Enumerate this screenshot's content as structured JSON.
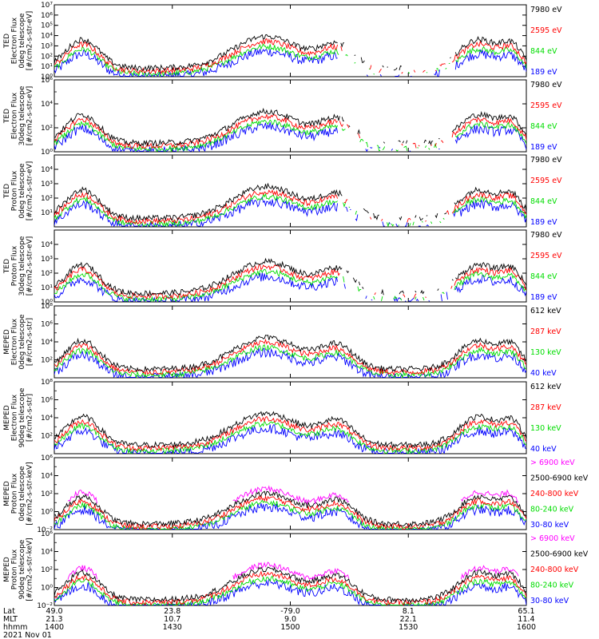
{
  "colors": {
    "black": "#000000",
    "blue": "#0000ff",
    "red": "#ff0000",
    "green": "#00dd00",
    "magenta": "#ff00ff"
  },
  "chart_data": [
    {
      "type": "line",
      "ylabel": [
        "TED",
        "Electron Flux",
        "0deg telescope",
        "[#/cm2-s-str-eV]"
      ],
      "ylim_exp": [
        0,
        7
      ],
      "tick_exps": [
        0,
        1,
        2,
        3,
        4,
        5,
        6,
        7
      ],
      "tick_labels": [
        "10⁰",
        "10¹",
        "10²",
        "10³",
        "10⁴",
        "10⁵",
        "10⁶",
        "10⁷"
      ],
      "series": [
        {
          "name": "7980 eV",
          "color": "black"
        },
        {
          "name": "2595 eV",
          "color": "red"
        },
        {
          "name": "844 eV",
          "color": "green"
        },
        {
          "name": "189 eV",
          "color": "blue"
        }
      ]
    },
    {
      "type": "line",
      "ylabel": [
        "TED",
        "Electron Flux",
        "30deg telescope",
        "[#/cm2-s-str-eV]"
      ],
      "ylim_exp": [
        0,
        6
      ],
      "tick_exps": [
        0,
        2,
        4,
        6
      ],
      "tick_labels": [
        "10⁰",
        "10²",
        "10⁴",
        "10⁶"
      ],
      "series": [
        {
          "name": "7980 eV",
          "color": "black"
        },
        {
          "name": "2595 eV",
          "color": "red"
        },
        {
          "name": "844 eV",
          "color": "green"
        },
        {
          "name": "189 eV",
          "color": "blue"
        }
      ]
    },
    {
      "type": "line",
      "ylabel": [
        "TED",
        "Proton Flux",
        "0deg telescope",
        "[#/cm2-s-str-eV]"
      ],
      "ylim_exp": [
        0,
        5
      ],
      "tick_exps": [
        1,
        2,
        3,
        4
      ],
      "tick_labels": [
        "10¹",
        "10²",
        "10³",
        "10⁴"
      ],
      "series": [
        {
          "name": "7980 eV",
          "color": "black"
        },
        {
          "name": "2595 eV",
          "color": "red"
        },
        {
          "name": "844 eV",
          "color": "green"
        },
        {
          "name": "189 eV",
          "color": "blue"
        }
      ]
    },
    {
      "type": "line",
      "ylabel": [
        "TED",
        "Proton Flux",
        "30deg telescope",
        "[#/cm2-s-str-eV]"
      ],
      "ylim_exp": [
        0,
        5
      ],
      "tick_exps": [
        0,
        1,
        2,
        3,
        4
      ],
      "tick_labels": [
        "10⁰",
        "10¹",
        "10²",
        "10³",
        "10⁴"
      ],
      "series": [
        {
          "name": "7980 eV",
          "color": "black"
        },
        {
          "name": "2595 eV",
          "color": "red"
        },
        {
          "name": "844 eV",
          "color": "green"
        },
        {
          "name": "189 eV",
          "color": "blue"
        }
      ]
    },
    {
      "type": "line",
      "ylabel": [
        "MEPED",
        "Electron Flux",
        "0deg telescope",
        "[#/cm2-s-str]"
      ],
      "ylim_exp": [
        0,
        8
      ],
      "tick_exps": [
        2,
        4,
        6,
        8
      ],
      "tick_labels": [
        "10²",
        "10⁴",
        "10⁶",
        "10⁸"
      ],
      "series": [
        {
          "name": "612 keV",
          "color": "black"
        },
        {
          "name": "287 keV",
          "color": "red"
        },
        {
          "name": "130 keV",
          "color": "green"
        },
        {
          "name": "40 keV",
          "color": "blue"
        }
      ]
    },
    {
      "type": "line",
      "ylabel": [
        "MEPED",
        "Electron Flux",
        "90deg telescope",
        "[#/cm2-s-str]"
      ],
      "ylim_exp": [
        0,
        8
      ],
      "tick_exps": [
        2,
        4,
        6,
        8
      ],
      "tick_labels": [
        "10²",
        "10⁴",
        "10⁶",
        "10⁸"
      ],
      "series": [
        {
          "name": "612 keV",
          "color": "black"
        },
        {
          "name": "287 keV",
          "color": "red"
        },
        {
          "name": "130 keV",
          "color": "green"
        },
        {
          "name": "40 keV",
          "color": "blue"
        }
      ]
    },
    {
      "type": "line",
      "ylabel": [
        "MEPED",
        "Proton Flux",
        "0deg telescope",
        "[#/cm2-s-str-keV]"
      ],
      "ylim_exp": [
        -2,
        6
      ],
      "tick_exps": [
        -2,
        0,
        2,
        4,
        6
      ],
      "tick_labels": [
        "10⁻²",
        "10⁰",
        "10²",
        "10⁴",
        "10⁶"
      ],
      "series": [
        {
          "name": "> 6900 keV",
          "color": "magenta"
        },
        {
          "name": "2500-6900 keV",
          "color": "black"
        },
        {
          "name": "240-800 keV",
          "color": "red"
        },
        {
          "name": "80-240 keV",
          "color": "green"
        },
        {
          "name": "30-80 keV",
          "color": "blue"
        }
      ]
    },
    {
      "type": "line",
      "ylabel": [
        "MEPED",
        "Proton Flux",
        "90deg telescope",
        "[#/cm2-s-str-keV]"
      ],
      "ylim_exp": [
        -2,
        6
      ],
      "tick_exps": [
        -2,
        0,
        2,
        4,
        6
      ],
      "tick_labels": [
        "10⁻²",
        "10⁰",
        "10²",
        "10⁴",
        "10⁶"
      ],
      "series": [
        {
          "name": "> 6900 keV",
          "color": "magenta"
        },
        {
          "name": "2500-6900 keV",
          "color": "black"
        },
        {
          "name": "240-800 keV",
          "color": "red"
        },
        {
          "name": "80-240 keV",
          "color": "green"
        },
        {
          "name": "30-80 keV",
          "color": "blue"
        }
      ]
    }
  ],
  "xaxis": {
    "row_labels": [
      "Lat",
      "MLT",
      "hhmm",
      "2021 Nov 01"
    ],
    "ticks": [
      {
        "lat": "49.0",
        "mlt": "21.3",
        "hhmm": "1400"
      },
      {
        "lat": "23.8",
        "mlt": "10.7",
        "hhmm": "1430"
      },
      {
        "lat": "-79.0",
        "mlt": "9.0",
        "hhmm": "1500"
      },
      {
        "lat": "8.1",
        "mlt": "22.1",
        "hhmm": "1530"
      },
      {
        "lat": "65.1",
        "mlt": "11.4",
        "hhmm": "1600"
      }
    ]
  }
}
